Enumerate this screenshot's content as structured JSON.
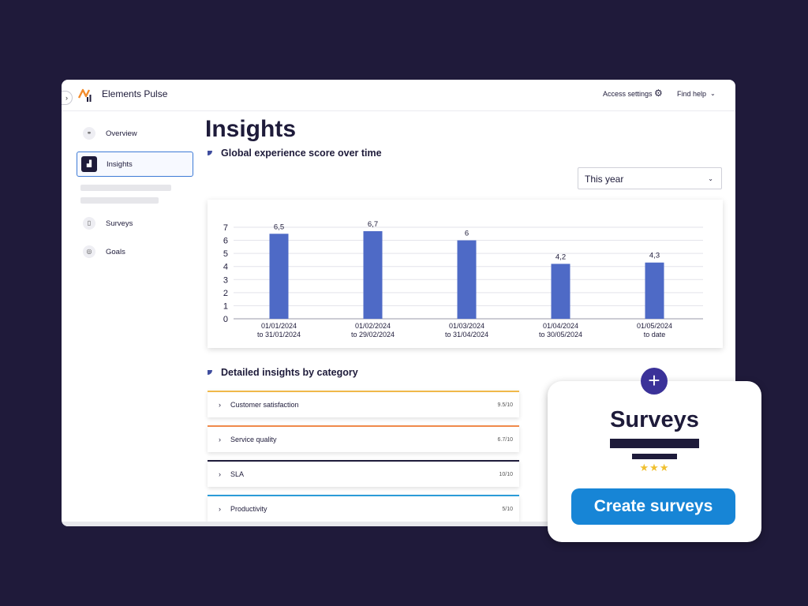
{
  "app": {
    "name": "Elements Pulse",
    "collapse_icon": "chevron-right-icon",
    "logo_icon": "elements-logo",
    "access_settings": "Access settings",
    "find_help": "Find help"
  },
  "sidebar": {
    "items": [
      {
        "label": "Overview",
        "icon": "overview-icon",
        "active": false
      },
      {
        "label": "Insights",
        "icon": "insights-icon",
        "active": true
      },
      {
        "label": "Surveys",
        "icon": "clipboard-icon",
        "active": false
      },
      {
        "label": "Goals",
        "icon": "target-icon",
        "active": false
      }
    ]
  },
  "page": {
    "title": "Insights",
    "chart_section_title": "Global experience score over time",
    "period_select": "This year",
    "categories_section_title": "Detailed insights by category"
  },
  "chart_data": {
    "type": "bar",
    "categories": [
      [
        "01/01/2024",
        "to 31/01/2024"
      ],
      [
        "01/02/2024",
        "to 29/02/2024"
      ],
      [
        "01/03/2024",
        "to 31/04/2024"
      ],
      [
        "01/04/2024",
        "to 30/05/2024"
      ],
      [
        "01/05/2024",
        "to date"
      ]
    ],
    "values": [
      6.5,
      6.7,
      6,
      4.2,
      4.3
    ],
    "value_labels": [
      "6,5",
      "6,7",
      "6",
      "4,2",
      "4,3"
    ],
    "yticks": [
      0,
      1,
      2,
      3,
      4,
      5,
      6,
      7
    ],
    "ylim": [
      0,
      7
    ],
    "grid": true,
    "bar_color": "#4e6ac6"
  },
  "categories": [
    {
      "label": "Customer satisfaction",
      "score": "9.5/10",
      "accent": "#f0b94a"
    },
    {
      "label": "Service quality",
      "score": "6.7/10",
      "accent": "#f08a4b"
    },
    {
      "label": "SLA",
      "score": "10/10",
      "accent": "#1e1b3a"
    },
    {
      "label": "Productivity",
      "score": "5/10",
      "accent": "#2b9bd8"
    }
  ],
  "promo": {
    "title": "Surveys",
    "stars": "★★★",
    "button": "Create surveys",
    "plus": "+"
  }
}
